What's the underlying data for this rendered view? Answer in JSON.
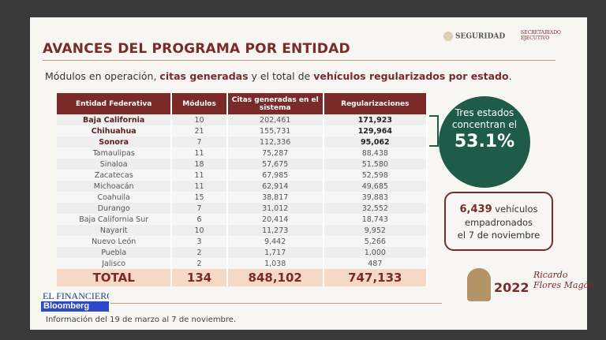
{
  "title": "AVANCES DEL PROGRAMA POR ENTIDAD",
  "subtitle": {
    "p1": "Módulos en operación, ",
    "b1": "citas generadas",
    "p2": " y el total de ",
    "b2": "vehículos regularizados por estado",
    "p3": "."
  },
  "logos": {
    "seguridad": "SEGURIDAD",
    "secretariado": "SECRETARIADO EJECUTIVO"
  },
  "table": {
    "headers": [
      "Entidad Federativa",
      "Módulos",
      "Citas generadas en el sistema",
      "Regularizaciones"
    ],
    "rows": [
      [
        "Baja California",
        "10",
        "202,461",
        "171,923"
      ],
      [
        "Chihuahua",
        "21",
        "155,731",
        "129,964"
      ],
      [
        "Sonora",
        "7",
        "112,336",
        "95,062"
      ],
      [
        "Tamaulipas",
        "11",
        "75,287",
        "88,438"
      ],
      [
        "Sinaloa",
        "18",
        "57,675",
        "51,580"
      ],
      [
        "Zacatecas",
        "11",
        "67,985",
        "52,598"
      ],
      [
        "Michoacán",
        "11",
        "62,914",
        "49,685"
      ],
      [
        "Coahuila",
        "15",
        "38,817",
        "39,883"
      ],
      [
        "Durango",
        "7",
        "31,012",
        "32,552"
      ],
      [
        "Baja California Sur",
        "6",
        "20,414",
        "18,743"
      ],
      [
        "Nayarit",
        "10",
        "11,273",
        "9,952"
      ],
      [
        "Nuevo León",
        "3",
        "9,442",
        "5,266"
      ],
      [
        "Puebla",
        "2",
        "1,717",
        "1,000"
      ],
      [
        "Jalisco",
        "2",
        "1,038",
        "487"
      ]
    ],
    "total": [
      "TOTAL",
      "134",
      "848,102",
      "747,133"
    ]
  },
  "callout": {
    "text": "Tres estados concentran el",
    "value": "53.1%"
  },
  "box": {
    "number": "6,439",
    "text1": " vehículos",
    "text2": "empadronados",
    "text3": "el 7 de noviembre"
  },
  "footer": "Información del 19 de marzo al 7 de noviembre.",
  "broadcast": {
    "line1": "EL FINANCIERO",
    "line2": "Bloomberg"
  },
  "emblem": {
    "year": "2022",
    "name": "Ricardo Flores Magón"
  }
}
